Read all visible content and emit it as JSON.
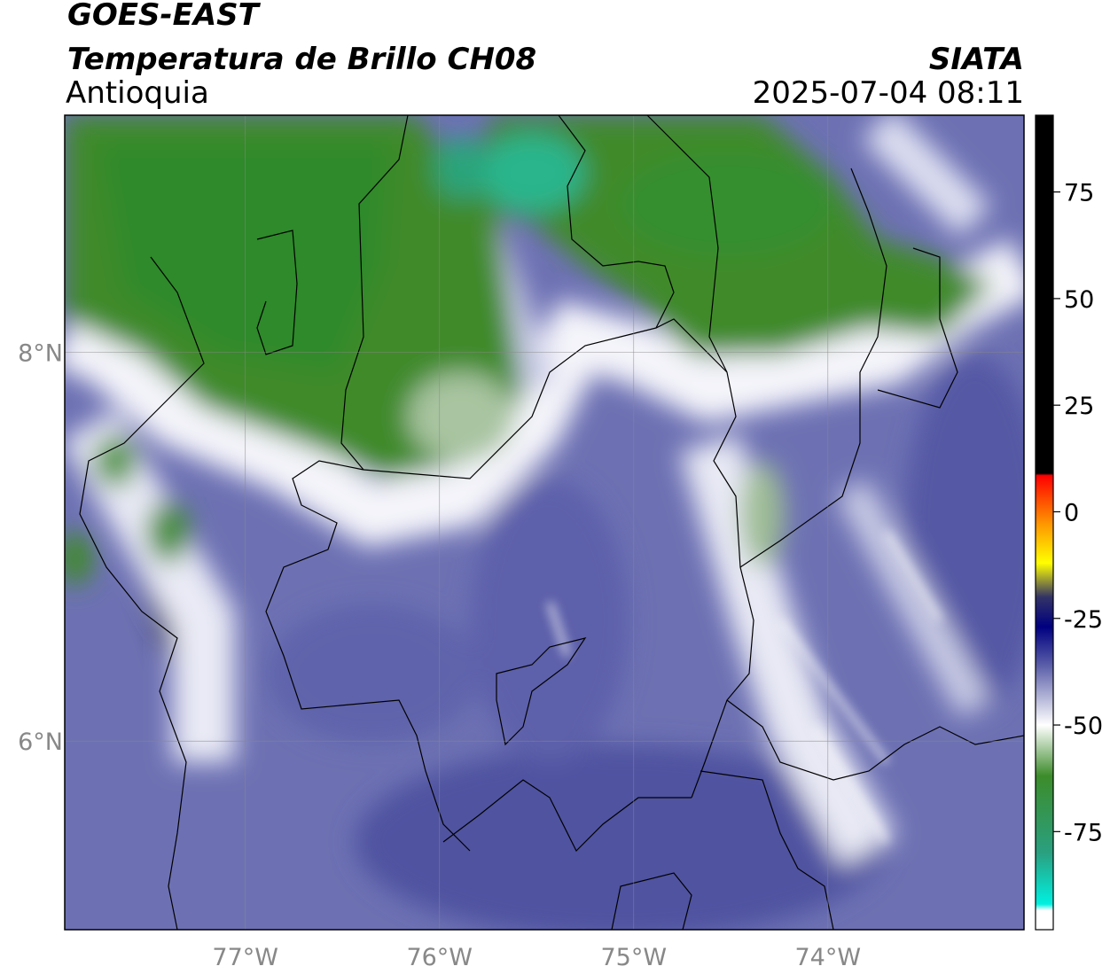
{
  "header": {
    "title": "GOES-EAST",
    "subtitle": "Temperatura de Brillo CH08",
    "region": "Antioquia",
    "source": "SIATA",
    "timestamp": "2025-07-04 08:11"
  },
  "map": {
    "xlim": [
      -77.93,
      -72.99
    ],
    "ylim": [
      5.03,
      9.22
    ],
    "grid": true,
    "xticks": [
      {
        "value": -77,
        "label": "77°W"
      },
      {
        "value": -76,
        "label": "76°W"
      },
      {
        "value": -75,
        "label": "75°W"
      },
      {
        "value": -74,
        "label": "74°W"
      }
    ],
    "yticks": [
      {
        "value": 8,
        "label": "8°N"
      },
      {
        "value": 6,
        "label": "6°N"
      }
    ]
  },
  "colorbar": {
    "lim": [
      -98,
      93
    ],
    "ticks": [
      75,
      50,
      25,
      0,
      -25,
      -50,
      -75
    ],
    "stops": [
      {
        "value": 93,
        "color": "#000000"
      },
      {
        "value": 9,
        "color": "#000000"
      },
      {
        "value": 8.5,
        "color": "#ff0000"
      },
      {
        "value": -3,
        "color": "#ff9900"
      },
      {
        "value": -12,
        "color": "#ffff00"
      },
      {
        "value": -20,
        "color": "#333366"
      },
      {
        "value": -27,
        "color": "#000080"
      },
      {
        "value": -36,
        "color": "#5a5ea8"
      },
      {
        "value": -50,
        "color": "#ffffff"
      },
      {
        "value": -62,
        "color": "#3c8c2a"
      },
      {
        "value": -80,
        "color": "#2aa080"
      },
      {
        "value": -92,
        "color": "#00f0e0"
      },
      {
        "value": -93.5,
        "color": "#ffffff"
      },
      {
        "value": -98,
        "color": "#ffffff"
      }
    ]
  }
}
